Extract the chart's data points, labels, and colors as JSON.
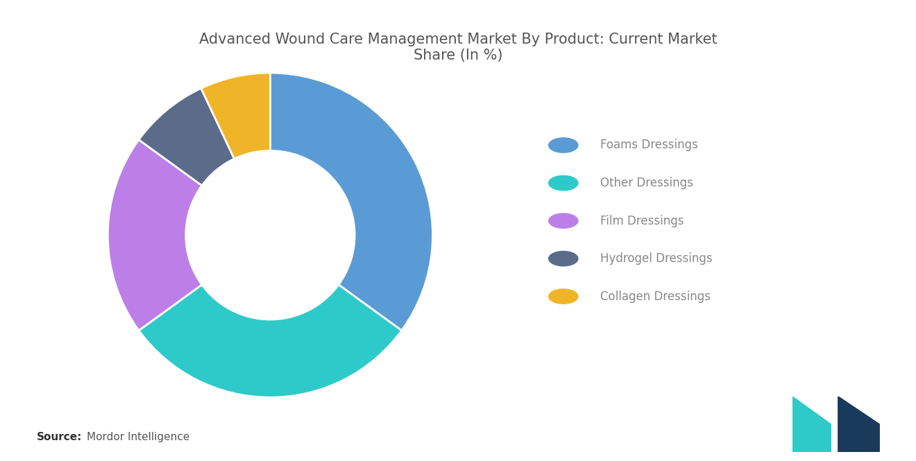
{
  "title": "Advanced Wound Care Management Market By Product: Current Market\nShare (In %)",
  "labels": [
    "Foams Dressings",
    "Other Dressings",
    "Film Dressings",
    "Hydrogel Dressings",
    "Collagen Dressings"
  ],
  "values": [
    35,
    30,
    20,
    8,
    7
  ],
  "colors": [
    "#5B9BD5",
    "#2ECACA",
    "#BC7FE8",
    "#5B6B8A",
    "#F0B429"
  ],
  "background_color": "#FFFFFF",
  "title_fontsize": 15,
  "title_color": "#555555",
  "legend_fontsize": 12,
  "legend_text_color": "#888888",
  "source_bold": "Source:",
  "source_normal": "Mordor Intelligence",
  "wedge_linewidth": 2,
  "wedge_edgecolor": "#FFFFFF",
  "donut_inner_ratio": 0.52
}
